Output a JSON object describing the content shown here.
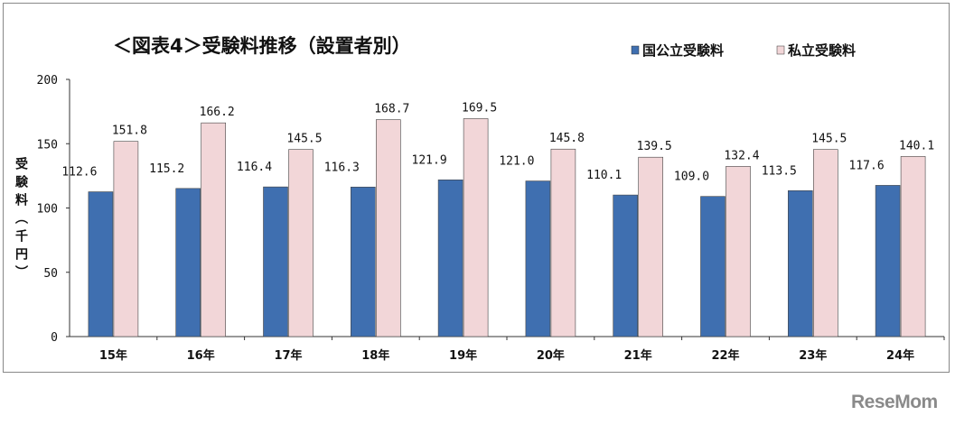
{
  "chart_data": {
    "type": "bar",
    "title": "＜図表4＞受験料推移（設置者別）",
    "xlabel": "",
    "ylabel": "受験料（千円）",
    "ylim": [
      0,
      200
    ],
    "yticks": [
      0,
      50,
      100,
      150,
      200
    ],
    "grid": false,
    "legend_position": "top-right",
    "categories": [
      "15年",
      "16年",
      "17年",
      "18年",
      "19年",
      "20年",
      "21年",
      "22年",
      "23年",
      "24年"
    ],
    "series": [
      {
        "name": "国公立受験料",
        "color": "#3f6fb0",
        "values": [
          112.6,
          115.2,
          116.4,
          116.3,
          121.9,
          121.0,
          110.1,
          109.0,
          113.5,
          117.6
        ]
      },
      {
        "name": "私立受験料",
        "color": "#f2d6d8",
        "values": [
          151.8,
          166.2,
          145.5,
          168.7,
          169.5,
          145.8,
          139.5,
          132.4,
          145.5,
          140.1
        ]
      }
    ]
  },
  "logo": "ReseMom"
}
